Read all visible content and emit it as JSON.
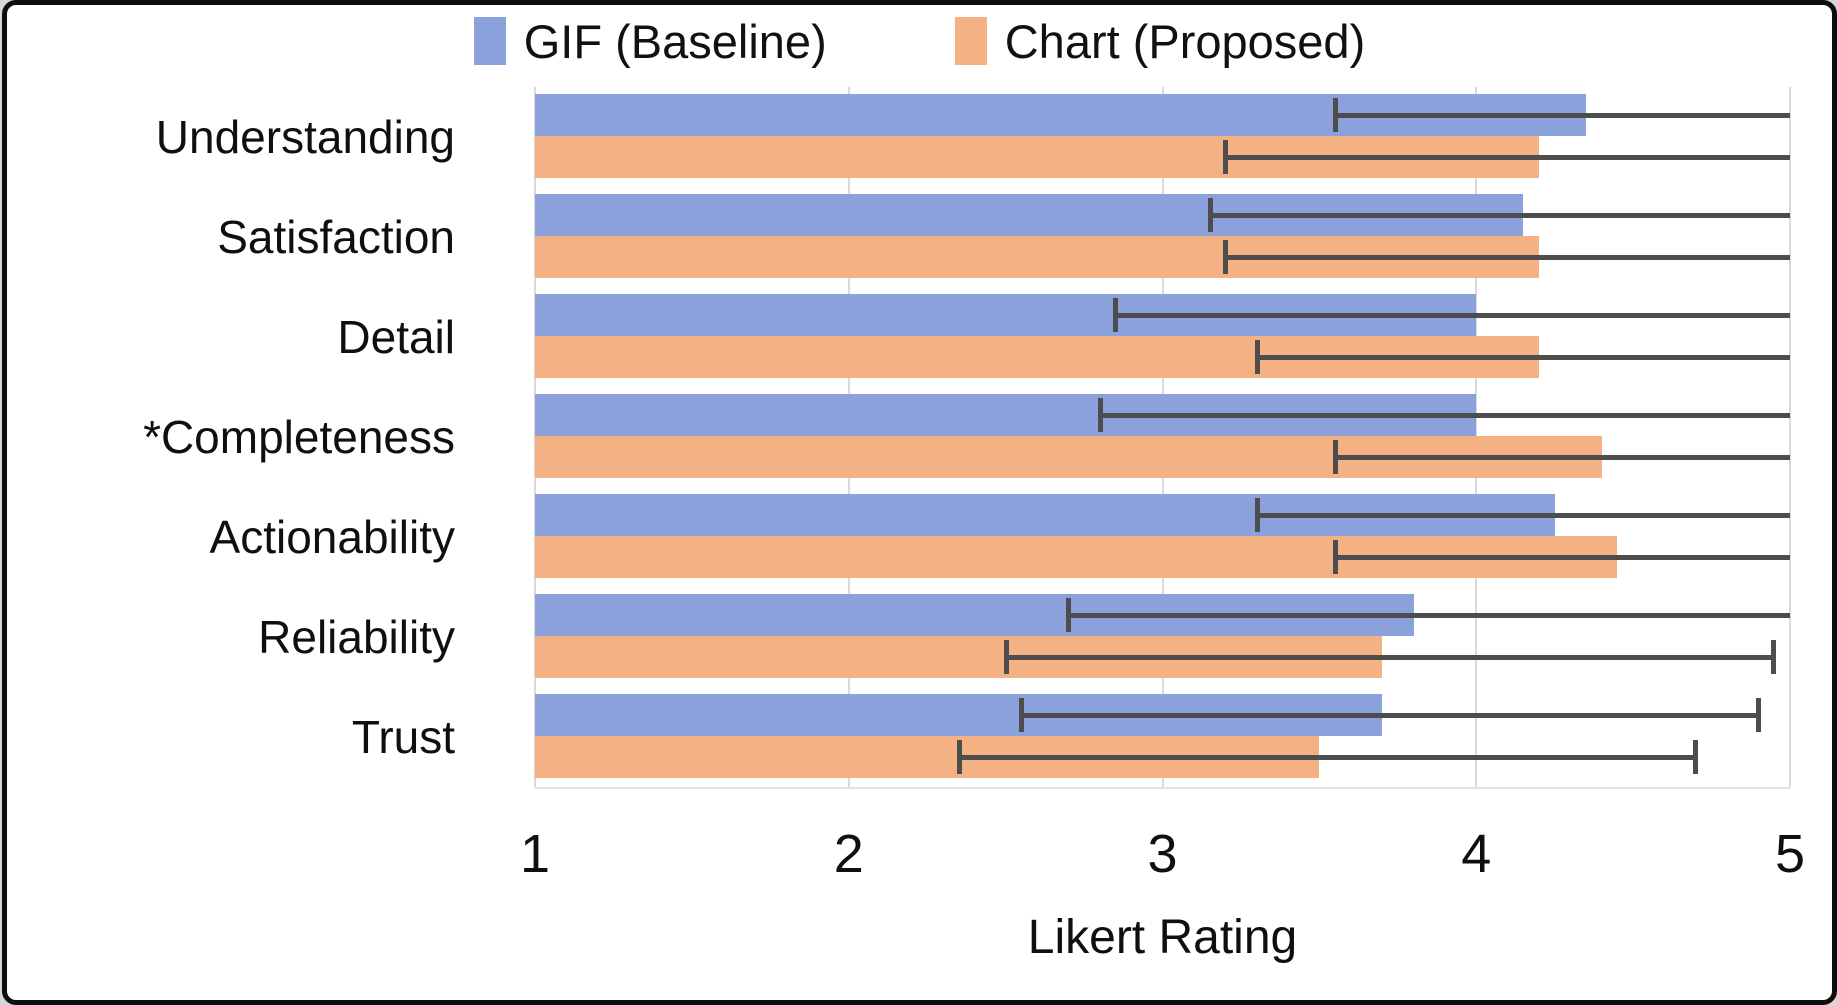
{
  "chart_data": {
    "type": "bar",
    "orientation": "horizontal",
    "xlabel": "Likert Rating",
    "xlim": [
      1,
      5
    ],
    "xticks": [
      1,
      2,
      3,
      4,
      5
    ],
    "grid": "vertical",
    "legend_position": "top",
    "categories": [
      "Understanding",
      "Satisfaction",
      "Detail",
      "*Completeness",
      "Actionability",
      "Reliability",
      "Trust"
    ],
    "series": [
      {
        "name": "GIF (Baseline)",
        "color": "#8BA1DB",
        "values": [
          4.35,
          4.15,
          4.0,
          4.0,
          4.25,
          3.8,
          3.7
        ],
        "error_low": [
          3.55,
          3.15,
          2.85,
          2.8,
          3.3,
          2.7,
          2.55
        ],
        "error_high": [
          5.0,
          5.0,
          5.0,
          5.0,
          5.0,
          5.0,
          4.9
        ]
      },
      {
        "name": "Chart (Proposed)",
        "color": "#F4B183",
        "values": [
          4.2,
          4.2,
          4.2,
          4.4,
          4.45,
          3.7,
          3.5
        ],
        "error_low": [
          3.2,
          3.2,
          3.3,
          3.55,
          3.55,
          2.5,
          2.35
        ],
        "error_high": [
          5.0,
          5.0,
          5.0,
          5.0,
          5.0,
          4.95,
          4.7
        ]
      }
    ],
    "colors": {
      "error_bar": "#4D4D4D",
      "gridline": "#D9D9D9",
      "text": "#0F0F0F"
    }
  }
}
